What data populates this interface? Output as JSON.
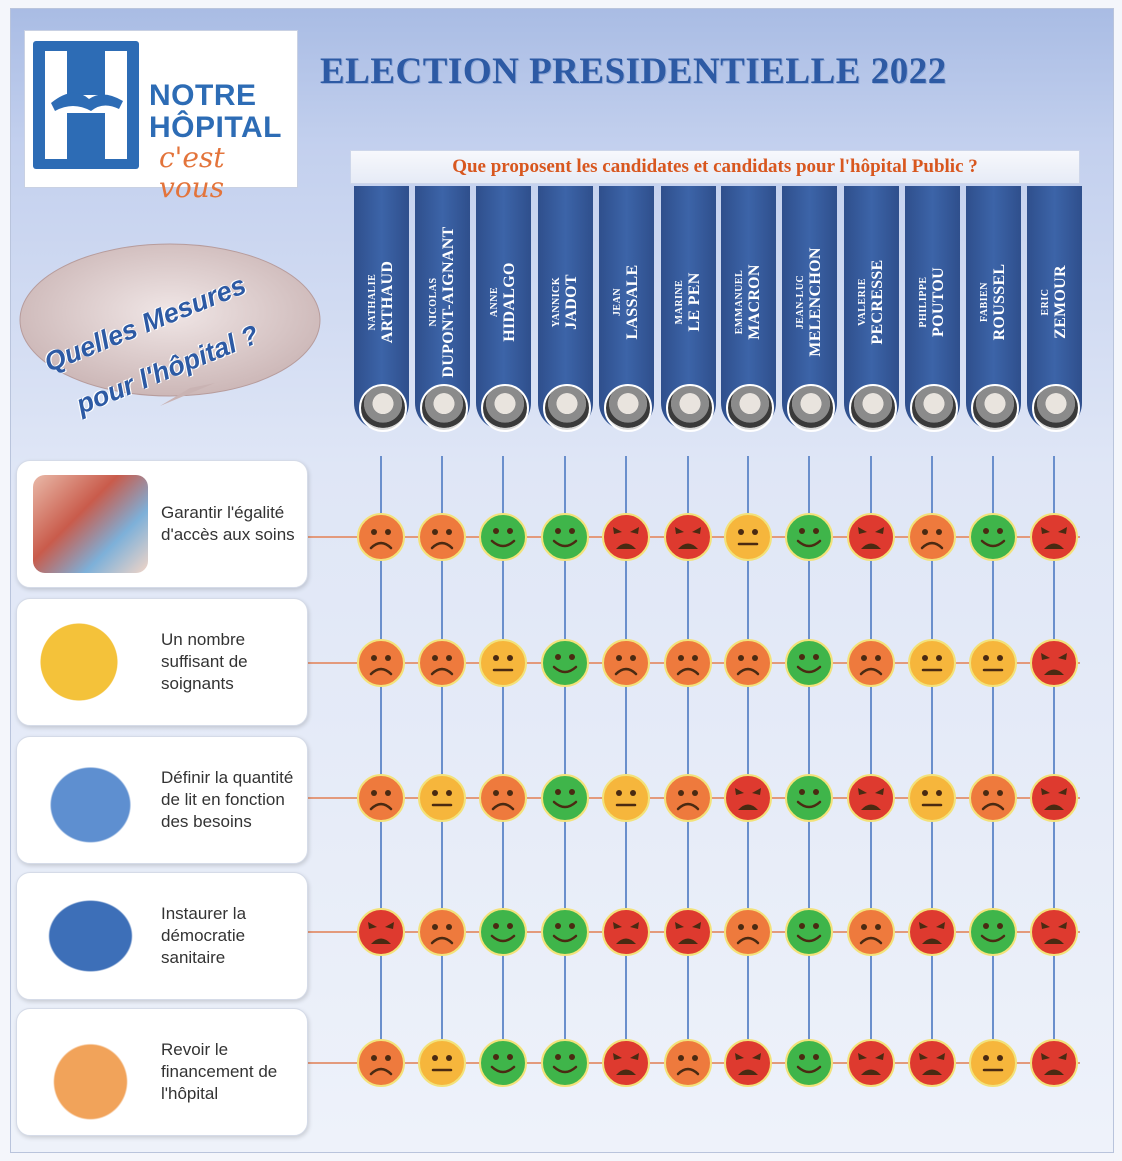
{
  "logo": {
    "line1": "NOTRE",
    "line2": "HÔPITAL",
    "line3": "c'est vous"
  },
  "title": "ELECTION PRESIDENTIELLE 2022",
  "subtitle": "Que proposent les candidates et candidats pour l'hôpital Public ?",
  "bubble": {
    "line1": "Quelles Mesures",
    "line2": "pour l'hôpital ?"
  },
  "candidates": [
    {
      "first": "NATHALIE",
      "last": "ARTHAUD"
    },
    {
      "first": "NICOLAS",
      "last": "DUPONT-AIGNANT"
    },
    {
      "first": "ANNE",
      "last": "HIDALGO"
    },
    {
      "first": "YANNICK",
      "last": "JADOT"
    },
    {
      "first": "JEAN",
      "last": "LASSALE"
    },
    {
      "first": "MARINE",
      "last": "LE PEN"
    },
    {
      "first": "EMMANUEL",
      "last": "MACRON"
    },
    {
      "first": "JEAN-LUC",
      "last": "MELENCHON"
    },
    {
      "first": "VALERIE",
      "last": "PECRESSE"
    },
    {
      "first": "PHILIPPE",
      "last": "POUTOU"
    },
    {
      "first": "FABIEN",
      "last": "ROUSSEL"
    },
    {
      "first": "ERIC",
      "last": "ZEMOUR"
    }
  ],
  "measures": [
    {
      "label": "Garantir l'égalité d'accès aux soins",
      "ratings": [
        "sad",
        "sad",
        "happy",
        "happy",
        "angry",
        "angry",
        "neutral",
        "happy",
        "angry",
        "sad",
        "happy",
        "angry"
      ]
    },
    {
      "label": "Un nombre suffisant de soignants",
      "ratings": [
        "sad",
        "sad",
        "neutral",
        "happy",
        "sad",
        "sad",
        "sad",
        "happy",
        "sad",
        "neutral",
        "neutral",
        "angry"
      ]
    },
    {
      "label": "Définir la quantité de lit en fonction des besoins",
      "ratings": [
        "sad",
        "neutral",
        "sad",
        "happy",
        "neutral",
        "sad",
        "angry",
        "happy",
        "angry",
        "neutral",
        "sad",
        "angry"
      ]
    },
    {
      "label": "Instaurer la démocratie sanitaire",
      "ratings": [
        "angry",
        "sad",
        "happy",
        "happy",
        "angry",
        "angry",
        "sad",
        "happy",
        "sad",
        "angry",
        "happy",
        "angry"
      ]
    },
    {
      "label": "Revoir le financement de l'hôpital",
      "ratings": [
        "sad",
        "neutral",
        "happy",
        "happy",
        "angry",
        "sad",
        "angry",
        "happy",
        "angry",
        "angry",
        "neutral",
        "angry"
      ]
    }
  ],
  "colors": {
    "happy": "#3fb54a",
    "neutral": "#f6b63c",
    "sad": "#ee7a3d",
    "angry": "#de3a2f",
    "header_blue": "#2f4f8c",
    "title_blue": "#2d5aa4",
    "subtitle_orange": "#d8571f"
  }
}
